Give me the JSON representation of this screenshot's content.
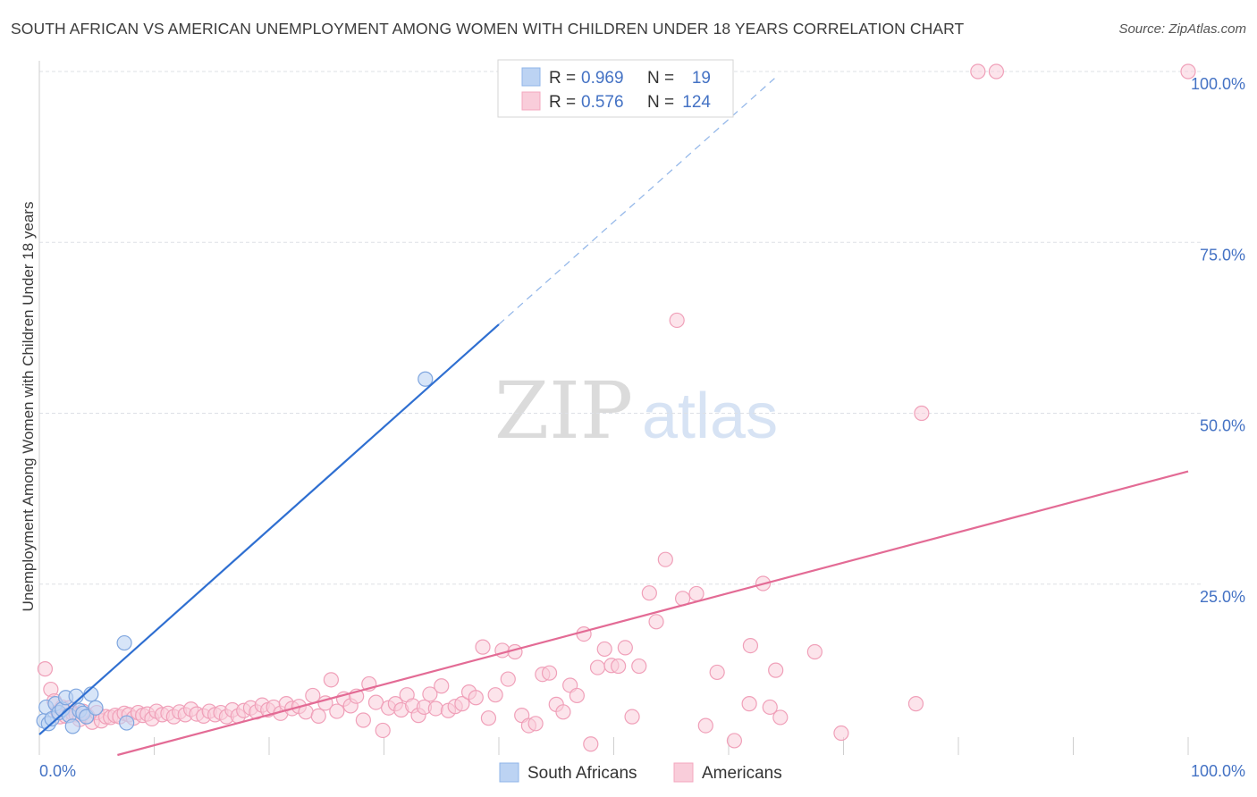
{
  "title": "SOUTH AFRICAN VS AMERICAN UNEMPLOYMENT AMONG WOMEN WITH CHILDREN UNDER 18 YEARS CORRELATION CHART",
  "source": "Source: ZipAtlas.com",
  "watermark": {
    "zip": "ZIP",
    "atlas": "atlas"
  },
  "legend": {
    "r_label": "R =",
    "n_label": "N =",
    "rows": [
      {
        "series": "South Africans",
        "r": "0.969",
        "n": "19",
        "color": "#8fb4e8"
      },
      {
        "series": "Americans",
        "r": "0.576",
        "n": "124",
        "color": "#f4a7bf"
      }
    ]
  },
  "colors": {
    "south_africans": "#2f6fd1",
    "americans": "#e36b95",
    "tick_text": "#4472c4",
    "grid": "#dde0e6"
  },
  "chart_data": {
    "type": "scatter",
    "title": "SOUTH AFRICAN VS AMERICAN UNEMPLOYMENT AMONG WOMEN WITH CHILDREN UNDER 18 YEARS CORRELATION CHART",
    "xlabel": "",
    "ylabel": "Unemployment Among Women with Children Under 18 years",
    "xlim": [
      0,
      100
    ],
    "ylim": [
      0,
      100
    ],
    "x_tick_labels": [
      "0.0%",
      "100.0%"
    ],
    "y_ticks": [
      25,
      50,
      75,
      100
    ],
    "y_tick_labels": [
      "25.0%",
      "50.0%",
      "75.0%",
      "100.0%"
    ],
    "grid": true,
    "legend_position": "top-center",
    "series": [
      {
        "name": "South Africans",
        "color": "#8fb4e8",
        "points": [
          [
            0.4,
            5.0
          ],
          [
            0.6,
            7.0
          ],
          [
            0.8,
            4.6
          ],
          [
            1.1,
            5.3
          ],
          [
            1.4,
            7.5
          ],
          [
            1.7,
            6.2
          ],
          [
            2.0,
            6.7
          ],
          [
            2.3,
            8.4
          ],
          [
            2.6,
            5.8
          ],
          [
            2.9,
            4.2
          ],
          [
            3.2,
            8.6
          ],
          [
            3.5,
            6.5
          ],
          [
            3.8,
            6.1
          ],
          [
            4.1,
            5.6
          ],
          [
            4.5,
            8.9
          ],
          [
            4.9,
            6.9
          ],
          [
            7.4,
            16.4
          ],
          [
            7.6,
            4.7
          ],
          [
            33.6,
            55.0
          ]
        ],
        "trend": {
          "x1": 0.0,
          "y1": 3.0,
          "x2": 40.0,
          "y2": 63.0,
          "dashed_to_x": 64.0,
          "dashed_to_y": 99.0
        }
      },
      {
        "name": "Americans",
        "color": "#f4a7bf",
        "points": [
          [
            0.5,
            12.6
          ],
          [
            1.0,
            9.6
          ],
          [
            1.3,
            7.9
          ],
          [
            1.6,
            6.3
          ],
          [
            1.8,
            5.6
          ],
          [
            2.0,
            7.0
          ],
          [
            2.3,
            5.7
          ],
          [
            2.6,
            6.9
          ],
          [
            2.9,
            6.1
          ],
          [
            3.2,
            5.9
          ],
          [
            3.5,
            5.2
          ],
          [
            3.8,
            6.4
          ],
          [
            4.2,
            5.7
          ],
          [
            4.6,
            4.8
          ],
          [
            5.0,
            6.2
          ],
          [
            5.4,
            5.0
          ],
          [
            5.8,
            5.6
          ],
          [
            6.2,
            5.5
          ],
          [
            6.6,
            5.8
          ],
          [
            7.0,
            5.6
          ],
          [
            7.4,
            6.1
          ],
          [
            7.8,
            5.9
          ],
          [
            8.2,
            5.4
          ],
          [
            8.6,
            6.2
          ],
          [
            9.0,
            5.8
          ],
          [
            9.4,
            6.0
          ],
          [
            9.8,
            5.3
          ],
          [
            10.2,
            6.4
          ],
          [
            10.7,
            5.9
          ],
          [
            11.2,
            6.1
          ],
          [
            11.7,
            5.6
          ],
          [
            12.2,
            6.3
          ],
          [
            12.7,
            5.9
          ],
          [
            13.2,
            6.7
          ],
          [
            13.7,
            6.0
          ],
          [
            14.3,
            5.7
          ],
          [
            14.8,
            6.4
          ],
          [
            15.3,
            5.9
          ],
          [
            15.8,
            6.2
          ],
          [
            16.3,
            5.6
          ],
          [
            16.8,
            6.6
          ],
          [
            17.3,
            5.7
          ],
          [
            17.8,
            6.5
          ],
          [
            18.4,
            6.9
          ],
          [
            18.9,
            6.3
          ],
          [
            19.4,
            7.3
          ],
          [
            19.9,
            6.6
          ],
          [
            20.4,
            7.0
          ],
          [
            21.0,
            6.1
          ],
          [
            21.5,
            7.5
          ],
          [
            22.0,
            6.8
          ],
          [
            22.6,
            7.1
          ],
          [
            23.2,
            6.3
          ],
          [
            23.8,
            8.7
          ],
          [
            24.3,
            5.7
          ],
          [
            24.9,
            7.6
          ],
          [
            25.4,
            11.0
          ],
          [
            25.9,
            6.4
          ],
          [
            26.5,
            8.2
          ],
          [
            27.1,
            7.2
          ],
          [
            27.6,
            8.6
          ],
          [
            28.2,
            5.1
          ],
          [
            28.7,
            10.4
          ],
          [
            29.3,
            7.7
          ],
          [
            29.9,
            3.6
          ],
          [
            30.4,
            6.9
          ],
          [
            31.0,
            7.5
          ],
          [
            31.5,
            6.6
          ],
          [
            32.0,
            8.8
          ],
          [
            32.5,
            7.2
          ],
          [
            33.0,
            5.8
          ],
          [
            33.5,
            7.0
          ],
          [
            34.0,
            8.9
          ],
          [
            34.5,
            6.8
          ],
          [
            35.0,
            10.1
          ],
          [
            35.6,
            6.5
          ],
          [
            36.2,
            7.1
          ],
          [
            36.8,
            7.5
          ],
          [
            37.4,
            9.2
          ],
          [
            38.0,
            8.4
          ],
          [
            38.6,
            15.8
          ],
          [
            39.1,
            5.4
          ],
          [
            39.7,
            8.8
          ],
          [
            40.3,
            15.3
          ],
          [
            40.8,
            11.1
          ],
          [
            41.4,
            15.1
          ],
          [
            42.0,
            5.8
          ],
          [
            42.6,
            4.3
          ],
          [
            43.2,
            4.6
          ],
          [
            43.8,
            11.8
          ],
          [
            44.4,
            12.0
          ],
          [
            45.0,
            7.4
          ],
          [
            45.6,
            6.3
          ],
          [
            46.2,
            10.2
          ],
          [
            46.8,
            8.7
          ],
          [
            47.4,
            17.7
          ],
          [
            48.0,
            1.6
          ],
          [
            48.6,
            12.8
          ],
          [
            49.2,
            15.5
          ],
          [
            49.8,
            13.1
          ],
          [
            50.4,
            13.0
          ],
          [
            51.0,
            15.7
          ],
          [
            51.6,
            5.6
          ],
          [
            52.2,
            13.0
          ],
          [
            53.1,
            23.7
          ],
          [
            53.7,
            19.5
          ],
          [
            54.5,
            28.6
          ],
          [
            55.5,
            63.6
          ],
          [
            56.0,
            22.9
          ],
          [
            57.2,
            23.6
          ],
          [
            58.0,
            4.3
          ],
          [
            59.0,
            12.1
          ],
          [
            60.5,
            2.1
          ],
          [
            61.8,
            7.5
          ],
          [
            61.9,
            16.0
          ],
          [
            63.0,
            25.1
          ],
          [
            63.6,
            7.0
          ],
          [
            64.1,
            12.4
          ],
          [
            64.5,
            5.5
          ],
          [
            67.5,
            15.1
          ],
          [
            69.8,
            3.2
          ],
          [
            76.8,
            50.0
          ],
          [
            76.3,
            7.5
          ],
          [
            81.7,
            100.0
          ],
          [
            83.3,
            100.0
          ],
          [
            100.0,
            100.0
          ]
        ],
        "trend": {
          "x1": 6.8,
          "y1": 0.0,
          "x2": 100.0,
          "y2": 41.5
        }
      }
    ]
  }
}
